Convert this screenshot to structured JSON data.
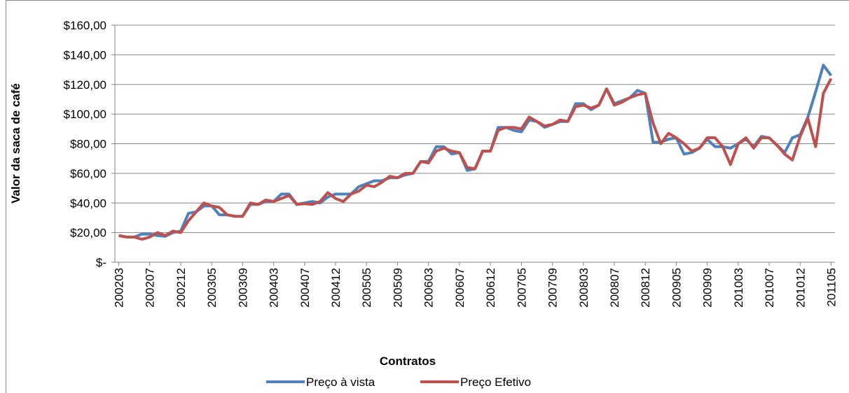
{
  "chart_data": {
    "type": "line",
    "ylabel": "Valor da saca de café",
    "xlabel": "Contratos",
    "categories": [
      "200203",
      null,
      null,
      null,
      "200207",
      null,
      null,
      null,
      "200212",
      null,
      null,
      null,
      "200305",
      null,
      null,
      null,
      "200309",
      null,
      null,
      null,
      "200403",
      null,
      null,
      null,
      "200407",
      null,
      null,
      null,
      "200412",
      null,
      null,
      null,
      "200505",
      null,
      null,
      null,
      "200509",
      null,
      null,
      null,
      "200603",
      null,
      null,
      null,
      "200607",
      null,
      null,
      null,
      "200612",
      null,
      null,
      null,
      "200705",
      null,
      null,
      null,
      "200709",
      null,
      null,
      null,
      "200803",
      null,
      null,
      null,
      "200807",
      null,
      null,
      null,
      "200812",
      null,
      null,
      null,
      "200905",
      null,
      null,
      null,
      "200909",
      null,
      null,
      null,
      "201003",
      null,
      null,
      null,
      "201007",
      null,
      null,
      null,
      "201012",
      null,
      null,
      null,
      "201105"
    ],
    "series": [
      {
        "name": "Preço à vista",
        "color": "#4f81bd",
        "values": [
          18,
          17,
          17,
          19,
          19,
          18,
          17.5,
          20,
          21,
          33,
          34,
          38,
          38,
          32,
          32,
          31,
          31,
          39,
          39,
          41,
          41,
          46,
          46,
          39,
          40,
          41,
          40,
          44,
          46,
          46,
          46,
          51,
          53,
          55,
          55,
          57,
          57,
          59,
          60,
          68,
          68,
          78,
          78,
          73,
          74,
          62,
          63,
          75,
          75,
          91,
          91,
          89,
          88,
          96,
          95,
          91,
          93,
          95,
          95,
          107,
          107,
          103,
          106,
          117,
          107,
          109,
          111,
          116,
          114,
          81,
          81,
          83,
          84,
          73,
          74,
          77,
          83,
          78,
          78,
          77,
          80,
          83,
          78,
          85,
          84,
          79,
          74,
          84,
          86,
          98,
          115,
          133,
          126
        ]
      },
      {
        "name": "Preço Efetivo",
        "color": "#c0504d",
        "values": [
          18,
          17,
          17,
          15.5,
          17,
          20,
          18,
          21,
          20,
          28,
          34,
          40,
          38,
          37,
          32,
          31,
          31,
          40,
          39,
          42,
          41,
          43,
          45,
          39,
          39.5,
          39,
          41,
          47,
          43,
          41,
          46,
          48,
          52,
          51,
          54,
          58,
          57,
          60,
          60,
          68,
          67,
          75,
          77,
          75,
          74,
          64,
          63,
          75,
          75,
          89,
          91,
          91,
          90,
          98,
          95,
          92,
          93,
          96,
          95,
          105,
          106,
          104,
          106,
          117,
          106,
          108,
          111,
          113,
          114,
          94,
          80,
          87,
          84,
          80,
          75,
          77,
          84,
          84,
          78,
          66,
          80,
          84,
          77,
          84,
          84,
          79,
          73,
          69,
          85,
          97,
          78,
          114,
          124
        ]
      }
    ],
    "ylim": [
      0,
      160
    ],
    "yticks": [
      {
        "value": 0,
        "label": "$-"
      },
      {
        "value": 20,
        "label": "$20,00"
      },
      {
        "value": 40,
        "label": "$40,00"
      },
      {
        "value": 60,
        "label": "$60,00"
      },
      {
        "value": 80,
        "label": "$80,00"
      },
      {
        "value": 100,
        "label": "$100,00"
      },
      {
        "value": 120,
        "label": "$120,00"
      },
      {
        "value": 140,
        "label": "$140,00"
      },
      {
        "value": 160,
        "label": "$160,00"
      }
    ],
    "grid": true,
    "legend": "bottom"
  }
}
